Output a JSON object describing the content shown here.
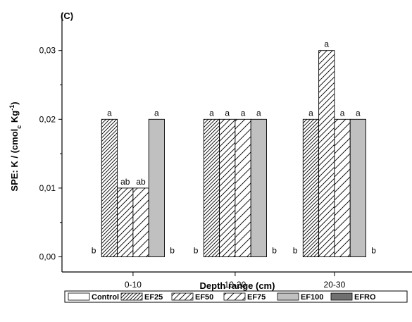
{
  "chart_data": {
    "type": "bar",
    "panel_label": "(C)",
    "categories": [
      "0-10",
      "10-20",
      "20-30"
    ],
    "xlabel": "Depth range (cm)",
    "ylabel": {
      "main": "SPE: K / (cmol",
      "sub": "c",
      "mid": " Kg",
      "sup": "-1",
      "close": ")"
    },
    "ylim": [
      -0.0022,
      0.0355
    ],
    "yticks": [
      0.0,
      0.01,
      0.02,
      0.03
    ],
    "ytick_labels": [
      "0,00",
      "0,01",
      "0,02",
      "0,03"
    ],
    "grid": false,
    "legend_position": "bottom",
    "series": [
      {
        "name": "Control",
        "values": [
          0.0,
          0.0,
          0.0
        ],
        "labels": [
          "b",
          "b",
          "b"
        ],
        "color": "#ffffff",
        "pattern": "none"
      },
      {
        "name": "EF25",
        "values": [
          0.02,
          0.02,
          0.02
        ],
        "labels": [
          "a",
          "a",
          "a"
        ],
        "color": "#ffffff",
        "pattern": "dense-hatch"
      },
      {
        "name": "EF50",
        "values": [
          0.01,
          0.02,
          0.03
        ],
        "labels": [
          "ab",
          "a",
          "a"
        ],
        "color": "#ffffff",
        "pattern": "hatch"
      },
      {
        "name": "EF75",
        "values": [
          0.01,
          0.02,
          0.02
        ],
        "labels": [
          "ab",
          "a",
          "a"
        ],
        "color": "#ffffff",
        "pattern": "sparse-hatch"
      },
      {
        "name": "EF100",
        "values": [
          0.02,
          0.02,
          0.02
        ],
        "labels": [
          "a",
          "a",
          "a"
        ],
        "color": "#c0c0c0",
        "pattern": "none"
      },
      {
        "name": "EFRO",
        "values": [
          0.0,
          0.0,
          0.0
        ],
        "labels": [
          "b",
          "b",
          "b"
        ],
        "color": "#707070",
        "pattern": "none"
      }
    ]
  }
}
